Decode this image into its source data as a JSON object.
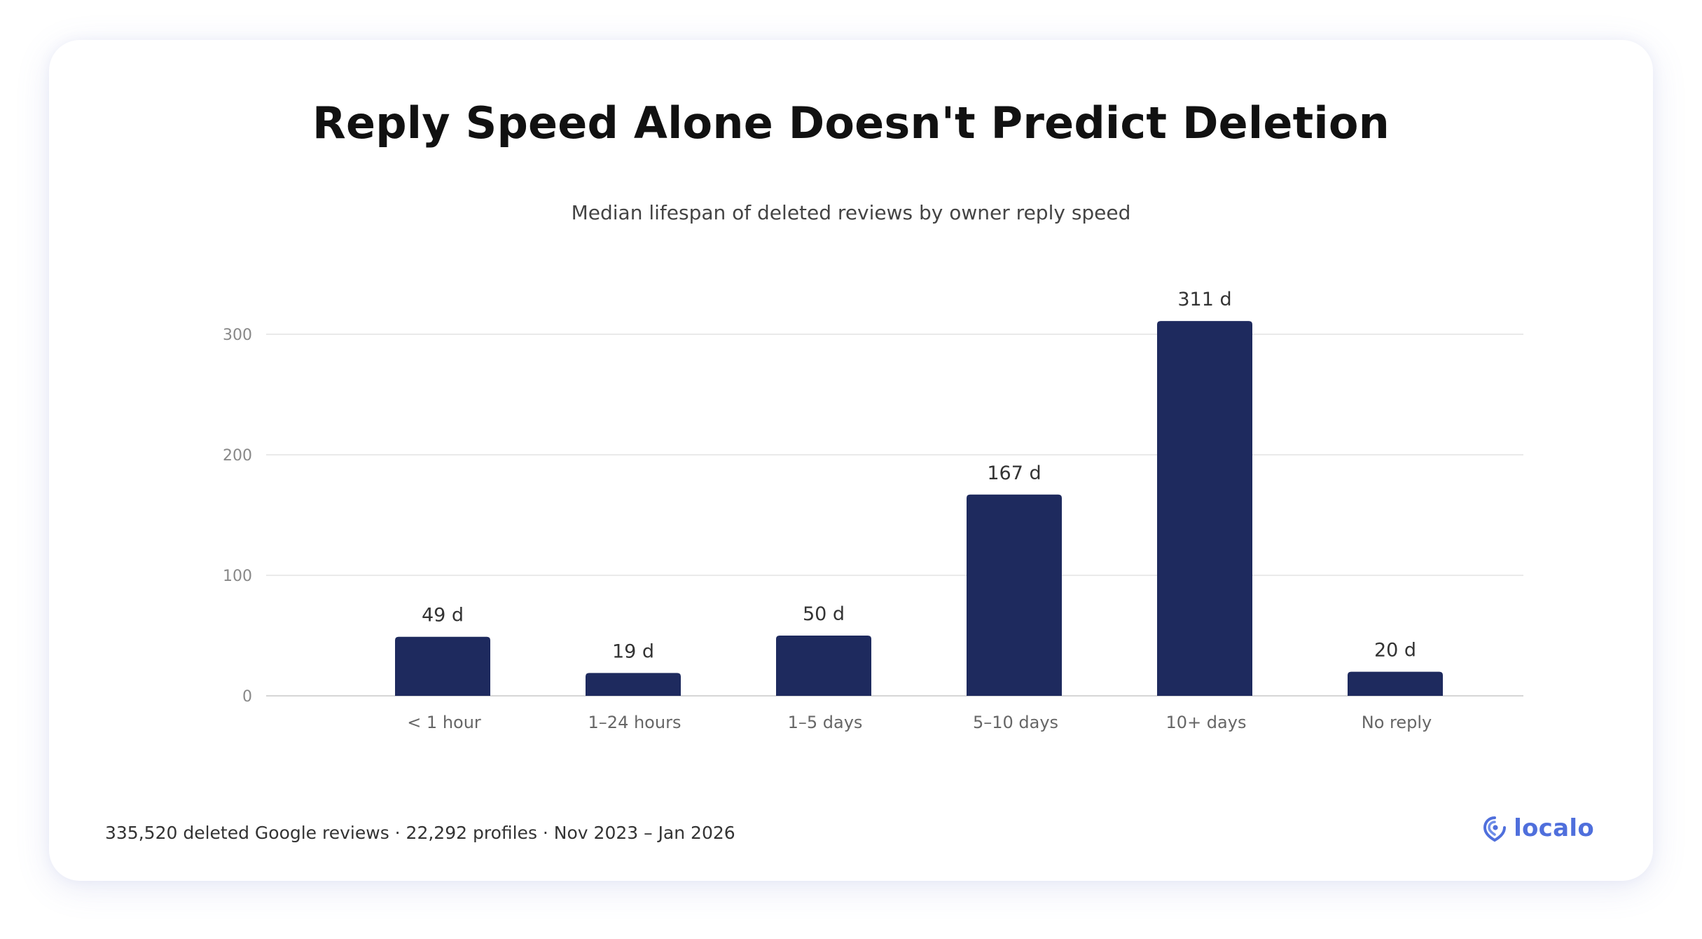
{
  "chart_data": {
    "type": "bar",
    "title": "Reply Speed Alone Doesn't Predict Deletion",
    "subtitle": "Median lifespan of deleted reviews by owner reply speed",
    "categories": [
      "< 1 hour",
      "1–24 hours",
      "1–5 days",
      "5–10 days",
      "10+ days",
      "No reply"
    ],
    "values": [
      49,
      19,
      50,
      167,
      311,
      20
    ],
    "data_labels": [
      "49 d",
      "19 d",
      "50 d",
      "167 d",
      "311 d",
      "20 d"
    ],
    "yticks": [
      "0",
      "100",
      "200",
      "300"
    ],
    "ylim": [
      0,
      300
    ],
    "xlabel": "",
    "ylabel": "",
    "grid": true,
    "legend": "none",
    "bar_color": "#1e2a5e"
  },
  "footnote": "335,520 deleted Google reviews · 22,292 profiles · Nov 2023 – Jan 2026",
  "brand": {
    "name": "localo",
    "icon": "location-pin-icon",
    "color": "#4f6fdc"
  }
}
